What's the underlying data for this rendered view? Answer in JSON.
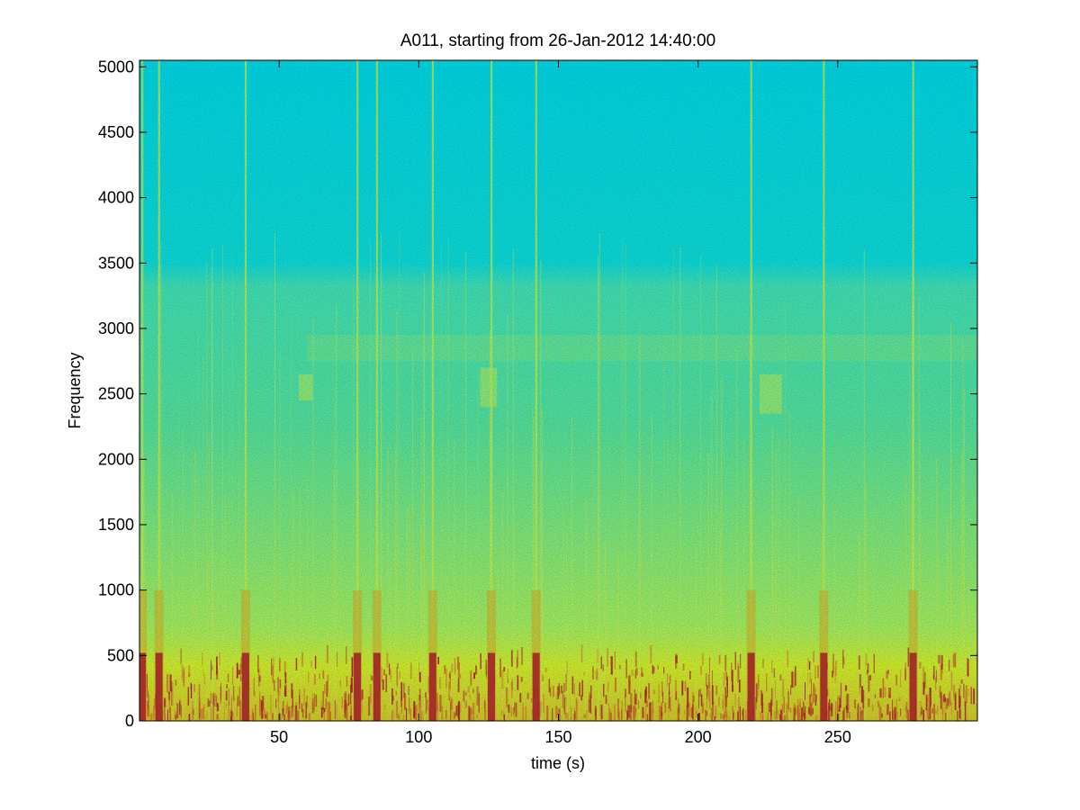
{
  "chart_data": {
    "type": "heatmap",
    "subtype": "spectrogram",
    "title": "A011, starting from 26-Jan-2012 14:40:00",
    "xlabel": "time (s)",
    "ylabel": "Frequency",
    "xlim": [
      0,
      300
    ],
    "ylim": [
      0,
      5050
    ],
    "x_ticks": [
      50,
      100,
      150,
      200,
      250
    ],
    "y_ticks": [
      0,
      500,
      1000,
      1500,
      2000,
      2500,
      3000,
      3500,
      4000,
      4500,
      5000
    ],
    "colormap": "jet",
    "grid": false,
    "legend": "none",
    "colors": {
      "high": "#d40000",
      "mid_high": "#ffff00",
      "mid": "#7fff7f",
      "low": "#00e5e5",
      "background": "#ffffff",
      "axes": "#000000"
    },
    "features": {
      "broadband_events_s": [
        1,
        7,
        38,
        78,
        85,
        105,
        126,
        142,
        219,
        245,
        277
      ],
      "low_frequency_band_hz": [
        0,
        700
      ],
      "mid_band_hz": [
        700,
        3500
      ],
      "high_band_hz": [
        3500,
        5050
      ],
      "tonal_patches": [
        {
          "time_s": [
            57,
            62
          ],
          "freq_hz": [
            2450,
            2650
          ]
        },
        {
          "time_s": [
            122,
            128
          ],
          "freq_hz": [
            2400,
            2700
          ]
        },
        {
          "time_s": [
            222,
            230
          ],
          "freq_hz": [
            2350,
            2650
          ]
        },
        {
          "time_s": [
            60,
            300
          ],
          "freq_hz": [
            2750,
            2950
          ]
        }
      ]
    }
  }
}
